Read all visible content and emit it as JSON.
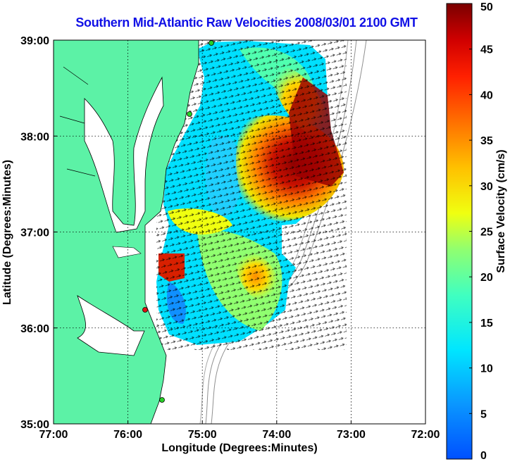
{
  "chart_data": {
    "type": "heatmap",
    "title": "Southern Mid-Atlantic Raw Velocities 2008/03/01 2100 GMT",
    "xlabel": "Longitude (Degrees:Minutes)",
    "ylabel": "Latitude (Degrees:Minutes)",
    "colorbar_label": "Surface Velocity (cm/s)",
    "x_ticks": [
      "77:00",
      "76:00",
      "75:00",
      "74:00",
      "73:00",
      "72:00"
    ],
    "y_ticks": [
      "39:00",
      "38:00",
      "37:00",
      "36:00",
      "35:00"
    ],
    "colorbar_ticks": [
      "0",
      "5",
      "10",
      "15",
      "20",
      "25",
      "30",
      "35",
      "40",
      "45",
      "50"
    ],
    "x_range": [
      -77,
      -72
    ],
    "y_range": [
      35,
      39
    ],
    "colorbar_range": [
      0,
      50
    ],
    "grid": true,
    "colors": {
      "land": "#5cf2a6",
      "title": "#1010e6",
      "stations": [
        "#28d028",
        "#28d028",
        "#e01010",
        "#28d028"
      ]
    }
  }
}
